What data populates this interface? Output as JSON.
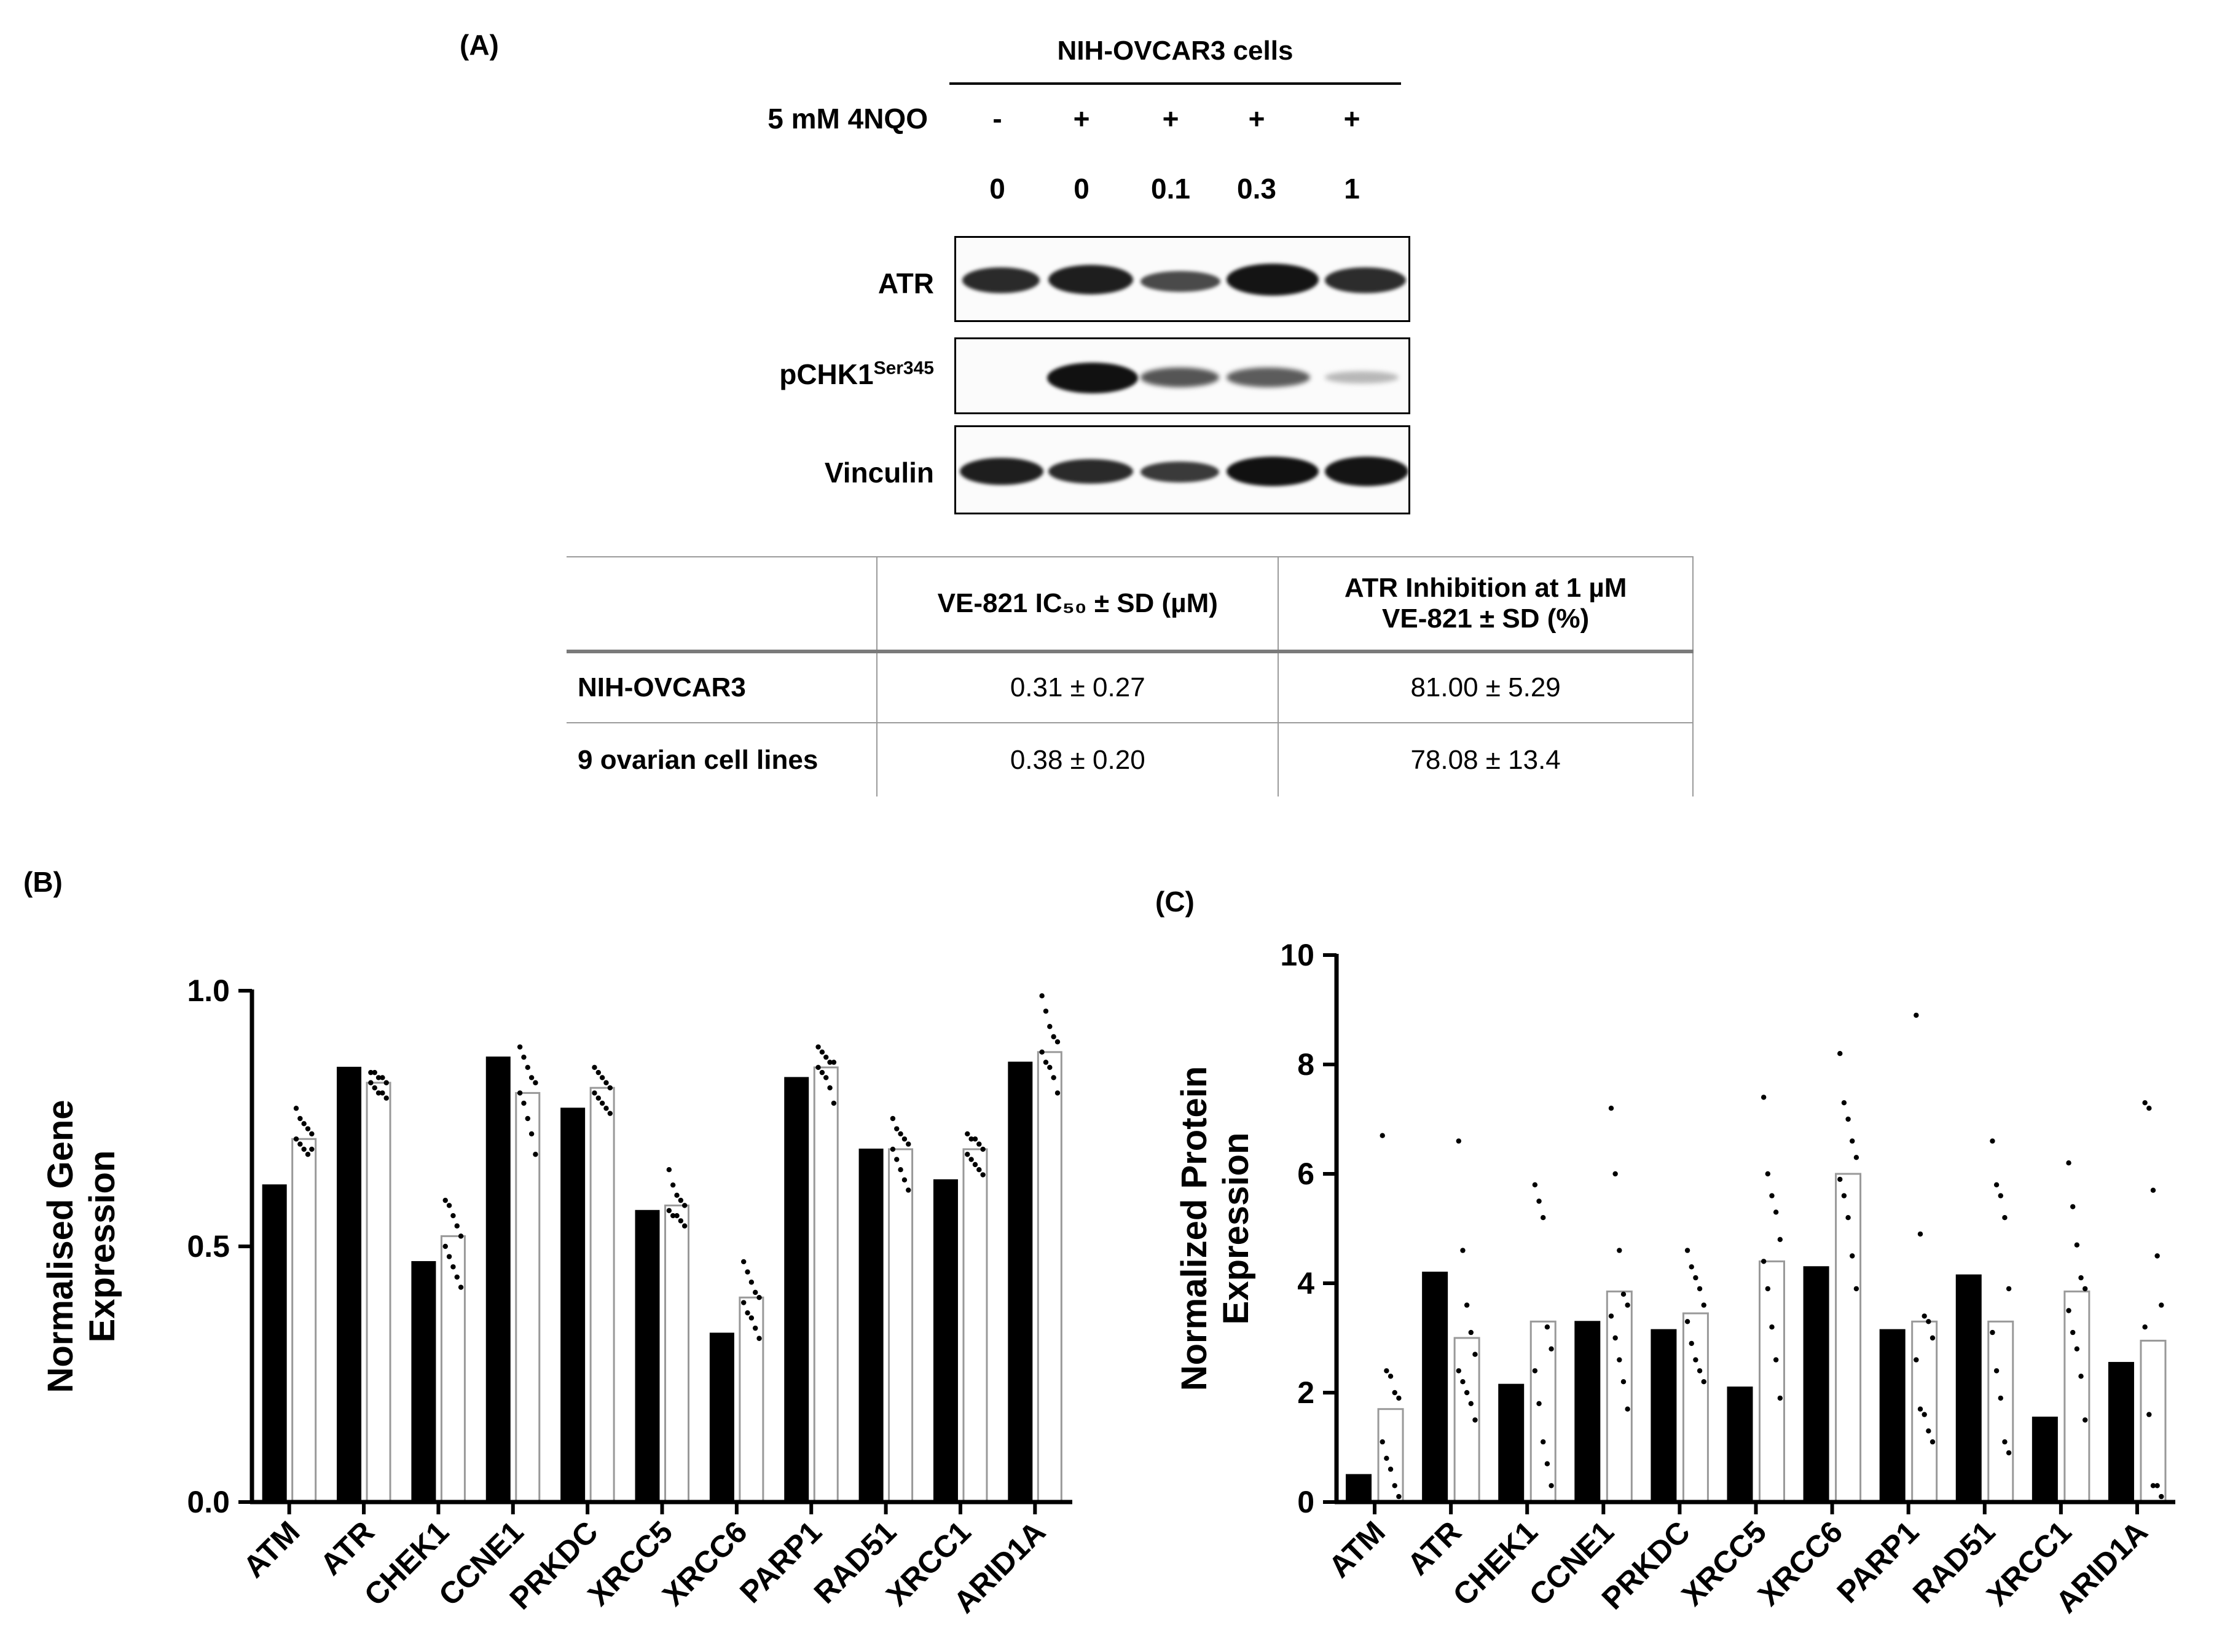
{
  "panel_a": {
    "label": "(A)",
    "cell_line_header": "NIH-OVCAR3 cells",
    "treatment_label": "5 mM 4NQO",
    "treatment_signs": [
      "-",
      "+",
      "+",
      "+",
      "+"
    ],
    "doses": [
      "0",
      "0",
      "0.1",
      "0.3",
      "1"
    ],
    "blots": [
      {
        "name": "ATR",
        "sup": ""
      },
      {
        "name": "pCHK1",
        "sup": "Ser345"
      },
      {
        "name": "Vinculin",
        "sup": ""
      }
    ],
    "table": {
      "headers": [
        "",
        "VE-821 IC₅₀ ± SD (µM)",
        "ATR Inhibition at 1 µM",
        "VE-821 ± SD (%)"
      ],
      "rows": [
        {
          "label": "NIH-OVCAR3",
          "ic50": "0.31 ± 0.27",
          "inhibition": "81.00 ± 5.29"
        },
        {
          "label": "9 ovarian cell lines",
          "ic50": "0.38 ± 0.20",
          "inhibition": "78.08 ± 13.4"
        }
      ]
    }
  },
  "chart_data": [
    {
      "panel": "(B)",
      "type": "bar",
      "ylabel": "Normalised Gene Expression",
      "ylim": [
        0,
        1.0
      ],
      "yticks": [
        "0.0",
        "0.5",
        "1.0"
      ],
      "categories": [
        "ATM",
        "ATR",
        "CHEK1",
        "CCNE1",
        "PRKDC",
        "XRCC5",
        "XRCC6",
        "PARP1",
        "RAD51",
        "XRCC1",
        "ARID1A"
      ],
      "series": [
        {
          "name": "NIH-OVCAR3",
          "color": "#000000",
          "values": [
            0.62,
            0.85,
            0.47,
            0.87,
            0.77,
            0.57,
            0.33,
            0.83,
            0.69,
            0.63,
            0.86
          ]
        },
        {
          "name": "9 ovarian cell lines",
          "color": "#ffffff",
          "values": [
            0.71,
            0.82,
            0.52,
            0.8,
            0.81,
            0.58,
            0.4,
            0.85,
            0.69,
            0.69,
            0.88
          ]
        }
      ],
      "points": [
        [
          0.77,
          0.75,
          0.74,
          0.73,
          0.72,
          0.71,
          0.7,
          0.69,
          0.68,
          0.69
        ],
        [
          0.84,
          0.84,
          0.83,
          0.83,
          0.82,
          0.82,
          0.81,
          0.8,
          0.8,
          0.79
        ],
        [
          0.59,
          0.58,
          0.56,
          0.54,
          0.52,
          0.5,
          0.48,
          0.46,
          0.44,
          0.42
        ],
        [
          0.89,
          0.87,
          0.85,
          0.83,
          0.82,
          0.8,
          0.78,
          0.75,
          0.72,
          0.68
        ],
        [
          0.85,
          0.84,
          0.83,
          0.82,
          0.81,
          0.8,
          0.79,
          0.78,
          0.77,
          0.76
        ],
        [
          0.65,
          0.62,
          0.6,
          0.59,
          0.58,
          0.57,
          0.56,
          0.56,
          0.55,
          0.54
        ],
        [
          0.47,
          0.45,
          0.43,
          0.41,
          0.4,
          0.39,
          0.37,
          0.36,
          0.34,
          0.32
        ],
        [
          0.89,
          0.88,
          0.87,
          0.86,
          0.86,
          0.85,
          0.84,
          0.83,
          0.81,
          0.78
        ],
        [
          0.75,
          0.73,
          0.72,
          0.71,
          0.7,
          0.69,
          0.67,
          0.65,
          0.63,
          0.61
        ],
        [
          0.72,
          0.71,
          0.71,
          0.7,
          0.69,
          0.68,
          0.67,
          0.66,
          0.65,
          0.64
        ],
        [
          0.99,
          0.96,
          0.93,
          0.91,
          0.9,
          0.88,
          0.86,
          0.85,
          0.83,
          0.8
        ]
      ]
    },
    {
      "panel": "(C)",
      "type": "bar",
      "ylabel": "Normalized Protein Expression",
      "ylim": [
        0,
        10
      ],
      "yticks": [
        "0",
        "2",
        "4",
        "6",
        "8",
        "10"
      ],
      "categories": [
        "ATM",
        "ATR",
        "CHEK1",
        "CCNE1",
        "PRKDC",
        "XRCC5",
        "XRCC6",
        "PARP1",
        "RAD51",
        "XRCC1",
        "ARID1A"
      ],
      "series": [
        {
          "name": "NIH-OVCAR3",
          "color": "#000000",
          "values": [
            0.5,
            4.2,
            2.15,
            3.3,
            3.15,
            2.1,
            4.3,
            3.15,
            4.15,
            1.55,
            2.55
          ]
        },
        {
          "name": "9 ovarian cell lines",
          "color": "#ffffff",
          "values": [
            1.7,
            3.0,
            3.3,
            3.85,
            3.45,
            4.4,
            6.0,
            3.3,
            3.3,
            3.85,
            2.95
          ]
        }
      ],
      "points": [
        [
          6.7,
          2.4,
          2.3,
          2.0,
          1.9,
          1.1,
          0.8,
          0.6,
          0.3,
          0.1
        ],
        [
          6.6,
          4.6,
          3.6,
          3.1,
          2.7,
          2.4,
          2.2,
          2.0,
          1.8,
          1.5
        ],
        [
          5.8,
          5.5,
          5.2,
          3.2,
          2.8,
          2.4,
          1.8,
          1.1,
          0.7,
          0.3
        ],
        [
          7.2,
          6.0,
          4.6,
          3.8,
          3.6,
          3.4,
          3.0,
          2.6,
          2.2,
          1.7
        ],
        [
          4.6,
          4.3,
          4.1,
          3.9,
          3.6,
          3.3,
          2.9,
          2.6,
          2.4,
          2.2
        ],
        [
          7.4,
          6.0,
          5.6,
          5.3,
          4.8,
          4.4,
          3.9,
          3.2,
          2.6,
          1.9
        ],
        [
          8.2,
          7.3,
          7.0,
          6.6,
          6.3,
          5.9,
          5.6,
          5.2,
          4.5,
          3.9
        ],
        [
          8.9,
          4.9,
          3.4,
          3.3,
          3.0,
          2.6,
          1.7,
          1.6,
          1.3,
          1.1
        ],
        [
          6.6,
          5.8,
          5.6,
          5.2,
          3.9,
          3.1,
          2.4,
          1.9,
          1.1,
          0.9
        ],
        [
          6.2,
          5.4,
          4.7,
          4.1,
          3.9,
          3.5,
          3.1,
          2.8,
          2.3,
          1.5
        ],
        [
          7.3,
          7.2,
          5.7,
          4.5,
          3.6,
          3.2,
          1.6,
          0.3,
          0.3,
          0.1
        ]
      ]
    }
  ]
}
